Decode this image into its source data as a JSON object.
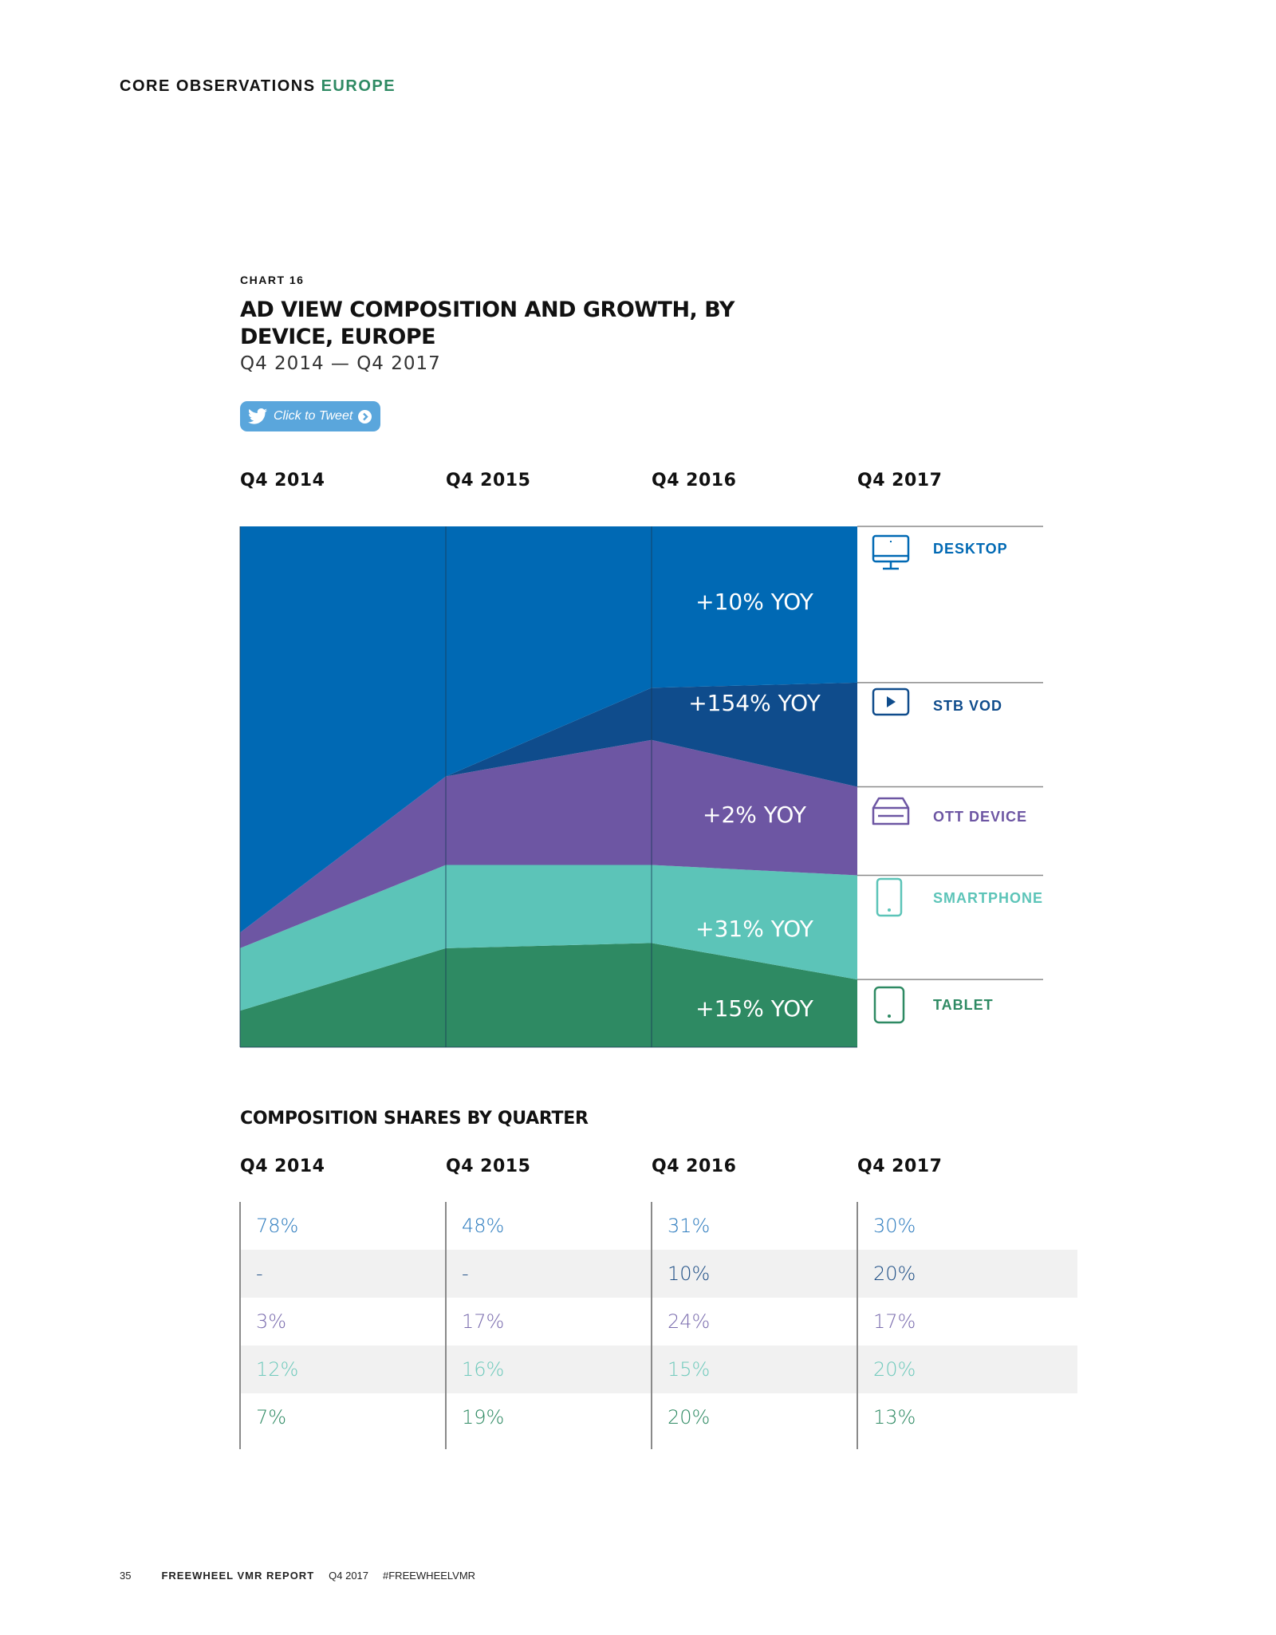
{
  "header": {
    "section_label": "CORE OBSERVATIONS",
    "section_region": "EUROPE"
  },
  "chart_meta": {
    "number": "CHART 16",
    "title": "AD VIEW COMPOSITION AND GROWTH, BY DEVICE, EUROPE",
    "subtitle": "Q4 2014 — Q4 2017",
    "tweet_label": "Click to Tweet"
  },
  "colors": {
    "desktop": "#0069b4",
    "stb_vod": "#0f4c8c",
    "ott_device": "#6d56a3",
    "smartphone": "#5cc4b8",
    "tablet": "#2e8a63",
    "shares_desktop": "#2f7dbf",
    "shares_stb": "#1f4f86",
    "shares_ott": "#7a6cae",
    "shares_smartphone": "#6fcabc",
    "shares_tablet": "#2e8a63"
  },
  "chart_data": {
    "type": "area",
    "stacked": true,
    "normalized": true,
    "title": "AD VIEW COMPOSITION AND GROWTH, BY DEVICE, EUROPE",
    "subtitle": "Q4 2014 — Q4 2017",
    "categories": [
      "Q4 2014",
      "Q4 2015",
      "Q4 2016",
      "Q4 2017"
    ],
    "ylim": [
      0,
      100
    ],
    "series": [
      {
        "name": "TABLET",
        "key": "tablet",
        "values": [
          7,
          19,
          20,
          13
        ],
        "annotation": "+15% YOY"
      },
      {
        "name": "SMARTPHONE",
        "key": "smartphone",
        "values": [
          12,
          16,
          15,
          20
        ],
        "annotation": "+31% YOY"
      },
      {
        "name": "OTT DEVICE",
        "key": "ott_device",
        "values": [
          3,
          17,
          24,
          17
        ],
        "annotation": "+2% YOY"
      },
      {
        "name": "STB VOD",
        "key": "stb_vod",
        "values": [
          0,
          0,
          10,
          20
        ],
        "annotation": "+154% YOY"
      },
      {
        "name": "DESKTOP",
        "key": "desktop",
        "values": [
          78,
          48,
          31,
          30
        ],
        "annotation": "+10% YOY"
      }
    ]
  },
  "legend": [
    {
      "label": "DESKTOP",
      "icon": "desktop-icon"
    },
    {
      "label": "STB VOD",
      "icon": "play-icon"
    },
    {
      "label": "OTT DEVICE",
      "icon": "ott-box-icon"
    },
    {
      "label": "SMARTPHONE",
      "icon": "smartphone-icon"
    },
    {
      "label": "TABLET",
      "icon": "tablet-icon"
    }
  ],
  "shares": {
    "heading": "COMPOSITION SHARES BY QUARTER",
    "columns": [
      "Q4 2014",
      "Q4 2015",
      "Q4 2016",
      "Q4 2017"
    ],
    "rows": [
      {
        "device": "desktop",
        "cells": [
          "78%",
          "48%",
          "31%",
          "30%"
        ]
      },
      {
        "device": "stb_vod",
        "cells": [
          "-",
          "-",
          "10%",
          "20%"
        ]
      },
      {
        "device": "ott_device",
        "cells": [
          "3%",
          "17%",
          "24%",
          "17%"
        ]
      },
      {
        "device": "smartphone",
        "cells": [
          "12%",
          "16%",
          "15%",
          "20%"
        ]
      },
      {
        "device": "tablet",
        "cells": [
          "7%",
          "19%",
          "20%",
          "13%"
        ]
      }
    ]
  },
  "footer": {
    "page_number": "35",
    "report_name": "FREEWHEEL VMR REPORT",
    "period": "Q4 2017",
    "hashtag": "#FREEWHEELVMR"
  }
}
